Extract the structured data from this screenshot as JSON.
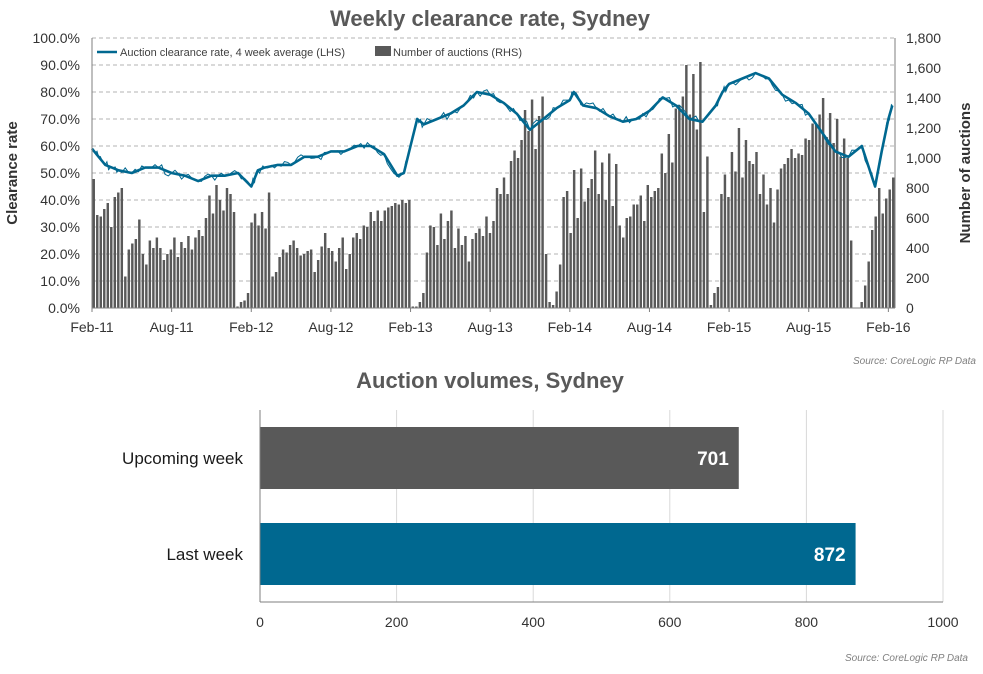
{
  "chart_data": [
    {
      "type": "line",
      "title": "Weekly clearance rate, Sydney",
      "ylabel": "Clearance rate",
      "y2label": "Number of auctions",
      "ylim": [
        0,
        1.0
      ],
      "y2lim": [
        0,
        1800
      ],
      "x_ticks": [
        "Feb-11",
        "Aug-11",
        "Feb-12",
        "Aug-12",
        "Feb-13",
        "Aug-13",
        "Feb-14",
        "Aug-14",
        "Feb-15",
        "Aug-15",
        "Feb-16"
      ],
      "y_ticks": [
        "0.0%",
        "10.0%",
        "20.0%",
        "30.0%",
        "40.0%",
        "50.0%",
        "60.0%",
        "70.0%",
        "80.0%",
        "90.0%",
        "100.0%"
      ],
      "y2_ticks": [
        "0",
        "200",
        "400",
        "600",
        "800",
        "1,000",
        "1,200",
        "1,400",
        "1,600",
        "1,800"
      ],
      "legend_position": "top-left",
      "grid": true,
      "series": [
        {
          "name": "Auction clearance rate, 4 week average (LHS)",
          "axis": "left",
          "kind": "line",
          "x_months": [
            0,
            0.5,
            1,
            1.5,
            2,
            3,
            4,
            5,
            6,
            7,
            8,
            9,
            10,
            11,
            12,
            12.5,
            13,
            14,
            15,
            16,
            17,
            18,
            19,
            20,
            21,
            22,
            23,
            23.5,
            24,
            24.5,
            25,
            26,
            27,
            28,
            29,
            30,
            31,
            32,
            33,
            34,
            35,
            36,
            36.3,
            37,
            38,
            39,
            40,
            41,
            42,
            43,
            44,
            45,
            46,
            47,
            47.5,
            48,
            49,
            50,
            51,
            52,
            53,
            54,
            55,
            56,
            57,
            58,
            59,
            59.5,
            60,
            60.3
          ],
          "values": [
            0.59,
            0.56,
            0.53,
            0.52,
            0.51,
            0.5,
            0.52,
            0.52,
            0.5,
            0.49,
            0.47,
            0.49,
            0.49,
            0.5,
            0.45,
            0.51,
            0.52,
            0.53,
            0.53,
            0.56,
            0.56,
            0.58,
            0.58,
            0.6,
            0.6,
            0.57,
            0.49,
            0.5,
            0.6,
            0.7,
            0.68,
            0.7,
            0.72,
            0.75,
            0.8,
            0.79,
            0.76,
            0.72,
            0.66,
            0.7,
            0.74,
            0.77,
            0.8,
            0.75,
            0.74,
            0.71,
            0.69,
            0.7,
            0.73,
            0.78,
            0.75,
            0.7,
            0.69,
            0.75,
            0.8,
            0.83,
            0.85,
            0.87,
            0.85,
            0.79,
            0.76,
            0.72,
            0.65,
            0.58,
            0.56,
            0.6,
            0.45,
            0.58,
            0.7,
            0.75
          ]
        },
        {
          "name": "Number of auctions (RHS)",
          "axis": "right",
          "kind": "bar",
          "weekly_values": [
            860,
            620,
            610,
            660,
            700,
            540,
            740,
            770,
            800,
            210,
            390,
            430,
            460,
            590,
            360,
            290,
            450,
            400,
            470,
            400,
            320,
            360,
            390,
            470,
            340,
            440,
            400,
            480,
            390,
            470,
            520,
            480,
            600,
            750,
            630,
            820,
            720,
            650,
            800,
            760,
            640,
            10,
            40,
            50,
            100,
            570,
            630,
            550,
            640,
            530,
            770,
            210,
            240,
            340,
            390,
            370,
            420,
            450,
            400,
            350,
            360,
            380,
            390,
            240,
            320,
            410,
            500,
            400,
            380,
            310,
            400,
            470,
            260,
            360,
            470,
            500,
            460,
            550,
            540,
            640,
            580,
            650,
            580,
            650,
            670,
            680,
            700,
            690,
            720,
            700,
            720,
            10,
            10,
            40,
            100,
            370,
            550,
            540,
            420,
            630,
            460,
            580,
            650,
            400,
            530,
            420,
            480,
            310,
            460,
            500,
            530,
            480,
            610,
            500,
            580,
            800,
            760,
            870,
            760,
            980,
            1050,
            1000,
            1120,
            1320,
            1180,
            1390,
            1060,
            1280,
            1410,
            360,
            40,
            20,
            110,
            290,
            740,
            780,
            500,
            920,
            600,
            930,
            710,
            800,
            860,
            1050,
            760,
            970,
            720,
            1030,
            680,
            960,
            550,
            470,
            600,
            610,
            690,
            690,
            750,
            580,
            820,
            740,
            780,
            800,
            1030,
            900,
            1160,
            970,
            1330,
            1350,
            1410,
            1620,
            1290,
            1560,
            1190,
            1640,
            640,
            1010,
            20,
            100,
            140,
            760,
            890,
            740,
            1040,
            910,
            1200,
            870,
            1120,
            980,
            960,
            1040,
            760,
            890,
            690,
            800,
            570,
            790,
            930,
            960,
            1000,
            1060,
            1000,
            1030,
            1020,
            1130,
            1120,
            1230,
            1220,
            1290,
            1400,
            1140,
            1300,
            1100,
            1260,
            1010,
            1130,
            1000,
            450,
            1,
            2,
            40,
            150,
            310,
            520,
            610,
            800,
            630,
            730,
            790,
            870
          ]
        }
      ],
      "source": "Source: CoreLogic  RP Data"
    },
    {
      "type": "bar",
      "orientation": "horizontal",
      "title": "Auction volumes, Sydney",
      "categories": [
        "Upcoming week",
        "Last week"
      ],
      "values": [
        701,
        872
      ],
      "value_labels": [
        "701",
        "872"
      ],
      "xlim": [
        0,
        1000
      ],
      "x_ticks": [
        "0",
        "200",
        "400",
        "600",
        "800",
        "1000"
      ],
      "colors": [
        "#595959",
        "#006890"
      ],
      "grid": true,
      "source": "Source: CoreLogic  RP Data"
    }
  ],
  "colors": {
    "line": "#006890",
    "bars": "#595959",
    "grid": "#9a9a9a"
  }
}
